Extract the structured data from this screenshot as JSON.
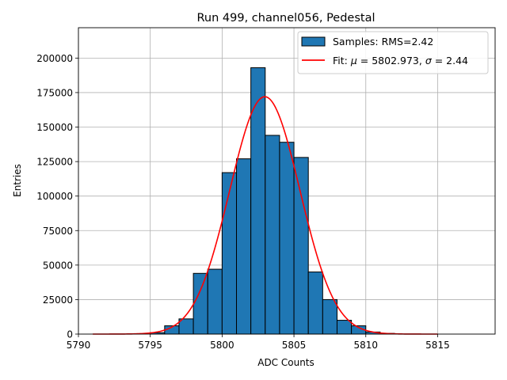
{
  "chart_data": {
    "type": "bar",
    "title": "Run 499, channel056, Pedestal",
    "xlabel": "ADC Counts",
    "ylabel": "Entries",
    "xlim": [
      5790,
      5819
    ],
    "ylim": [
      0,
      222000
    ],
    "grid": true,
    "legend_position": "top-right",
    "xticks": [
      5790,
      5795,
      5800,
      5805,
      5810,
      5815
    ],
    "yticks": [
      0,
      25000,
      50000,
      75000,
      100000,
      125000,
      150000,
      175000,
      200000
    ],
    "histogram": {
      "name": "Samples: RMS=2.42",
      "color": "#1f77b4",
      "bins": [
        {
          "x": 5795,
          "count": 1000
        },
        {
          "x": 5796,
          "count": 6000
        },
        {
          "x": 5797,
          "count": 11000
        },
        {
          "x": 5798,
          "count": 44000
        },
        {
          "x": 5799,
          "count": 47000
        },
        {
          "x": 5800,
          "count": 117000
        },
        {
          "x": 5801,
          "count": 127000
        },
        {
          "x": 5802,
          "count": 193000
        },
        {
          "x": 5803,
          "count": 144000
        },
        {
          "x": 5804,
          "count": 139000
        },
        {
          "x": 5805,
          "count": 128000
        },
        {
          "x": 5806,
          "count": 45000
        },
        {
          "x": 5807,
          "count": 25000
        },
        {
          "x": 5808,
          "count": 10000
        },
        {
          "x": 5809,
          "count": 6000
        },
        {
          "x": 5810,
          "count": 1500
        },
        {
          "x": 5811,
          "count": 500
        }
      ]
    },
    "fit": {
      "name": "Fit: μ = 5802.973, σ = 2.44",
      "name_parts": [
        "Fit: ",
        "μ",
        " = 5802.973, ",
        "σ",
        " = 2.44"
      ],
      "color": "#ff0000",
      "mu": 5802.973,
      "sigma": 2.44,
      "peak": 172000,
      "x_range": [
        5791,
        5815
      ]
    }
  }
}
